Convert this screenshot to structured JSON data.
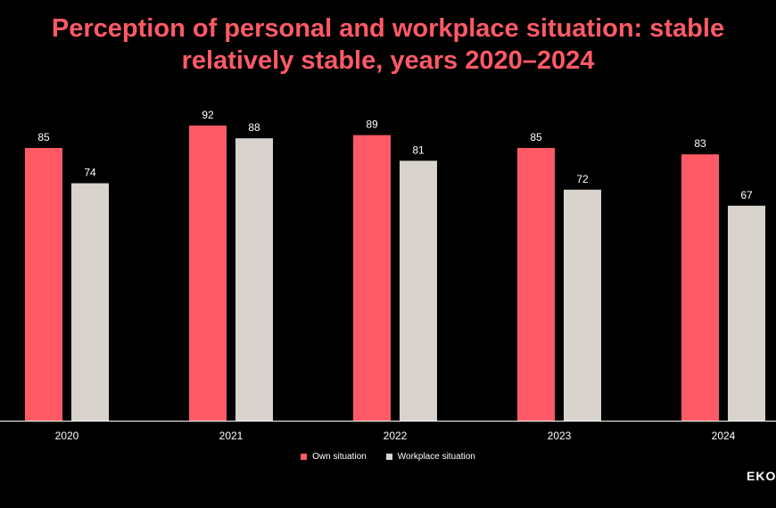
{
  "chart_data": {
    "type": "bar",
    "title_lines": [
      "Perception of personal and workplace situation: stable",
      "relatively stable, years 2020–2024"
    ],
    "categories": [
      "2020",
      "2021",
      "2022",
      "2023",
      "2024"
    ],
    "series": [
      {
        "name": "Own situation",
        "values": [
          85,
          92,
          89,
          85,
          83
        ],
        "color": "#ff5a66"
      },
      {
        "name": "Workplace situation",
        "values": [
          74,
          88,
          81,
          72,
          67
        ],
        "color": "#d9d3cd"
      }
    ],
    "xlabel": "",
    "ylabel": "",
    "ylim": [
      0,
      100
    ],
    "grid": false,
    "legend_position": "bottom",
    "data_labels": true
  },
  "colors": {
    "background": "#000000",
    "title": "#ff5a66",
    "axis": "#ffffff",
    "label_text": "#ffffff"
  },
  "brand": {
    "text": "EKON"
  }
}
